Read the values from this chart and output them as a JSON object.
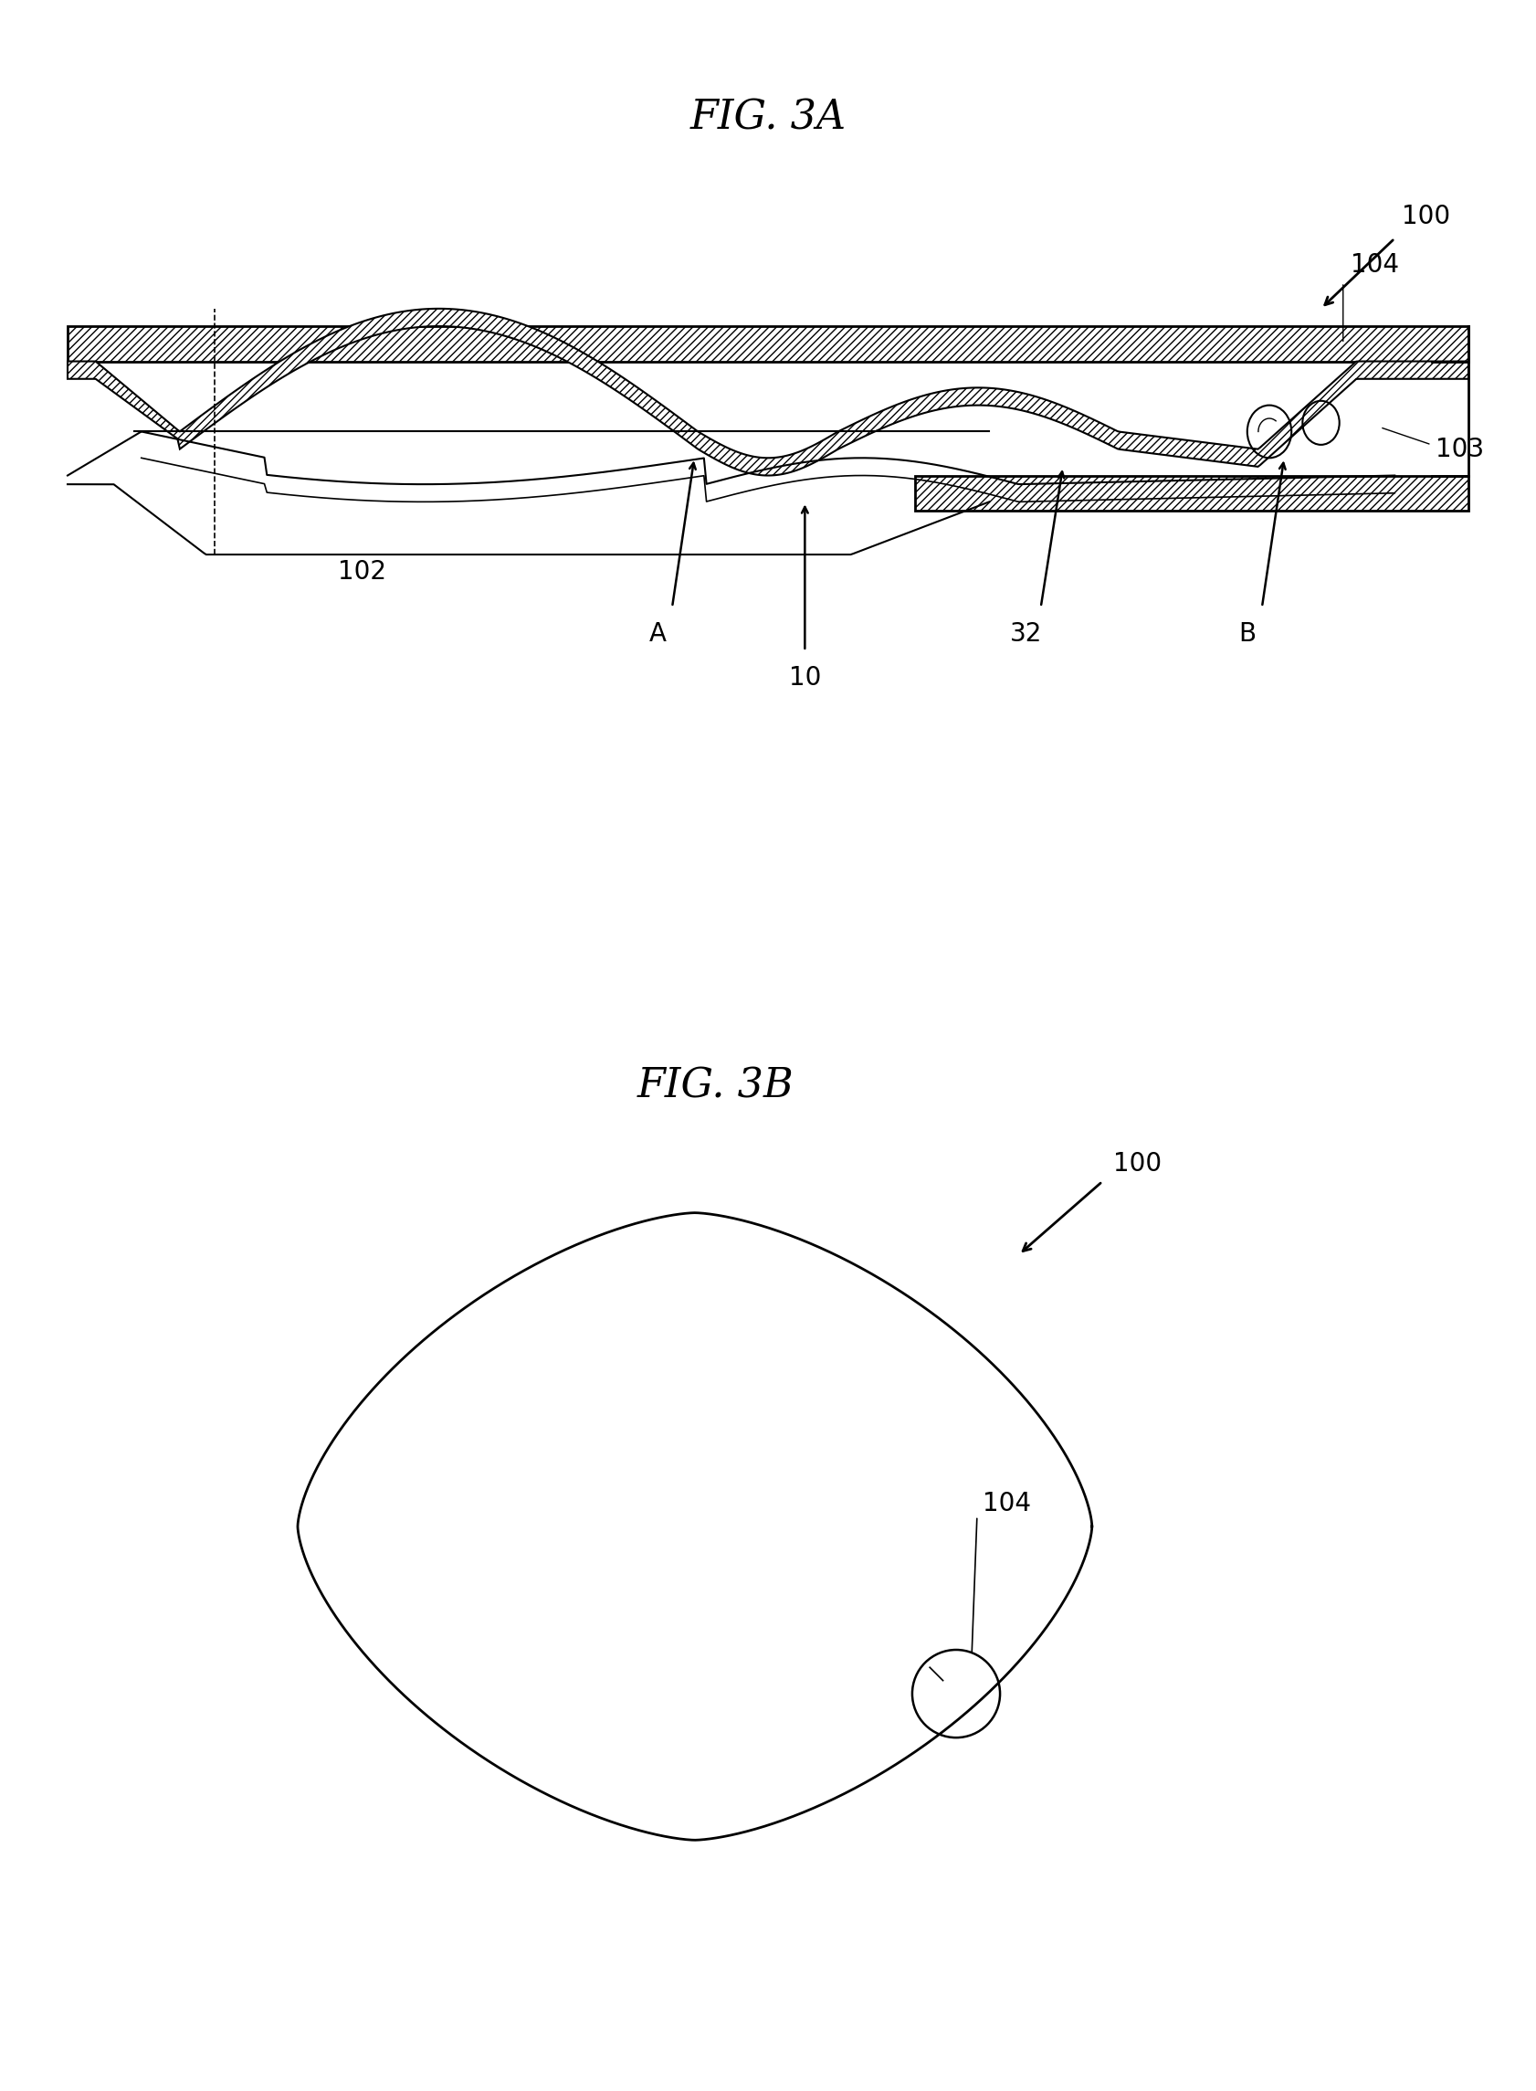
{
  "fig_title_3a": "FIG. 3A",
  "fig_title_3b": "FIG. 3B",
  "bg_color": "#ffffff",
  "label_100_3a": "100",
  "label_104_3a": "104",
  "label_103_3a": "103",
  "label_102_3a": "102",
  "label_A": "A",
  "label_10": "10",
  "label_32": "32",
  "label_B": "B",
  "label_100_3b": "100",
  "label_104_3b": "104",
  "font_size_title": 32,
  "font_size_label": 20,
  "fig_width": 16.82,
  "fig_height": 22.89
}
